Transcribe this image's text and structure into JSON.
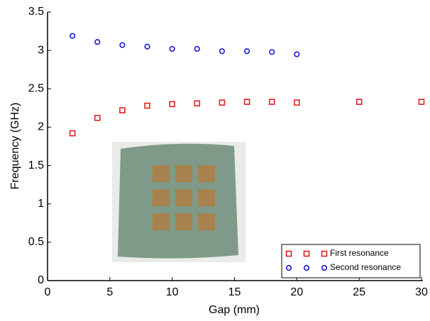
{
  "chart_data": {
    "type": "scatter",
    "x_label": "Gap (mm)",
    "y_label": "Frequency (GHz)",
    "xlim": [
      0,
      30
    ],
    "xticks": [
      0,
      5,
      10,
      15,
      20,
      25,
      30
    ],
    "ylim": [
      0,
      3.5
    ],
    "yticks": [
      0,
      0.5,
      1,
      1.5,
      2,
      2.5,
      3,
      3.5
    ],
    "legend": "lower right",
    "grid": false,
    "series": [
      {
        "name": "First resonance",
        "color": "#e02020",
        "marker": "square",
        "x": [
          2,
          4,
          6,
          8,
          10,
          12,
          14,
          16,
          18,
          20,
          25,
          30
        ],
        "values": [
          1.92,
          2.12,
          2.22,
          2.28,
          2.3,
          2.31,
          2.32,
          2.33,
          2.33,
          2.32,
          2.33,
          2.33
        ]
      },
      {
        "name": "Second resonance",
        "color": "#1a1ad0",
        "marker": "circle",
        "x": [
          2,
          4,
          6,
          8,
          10,
          12,
          14,
          16,
          18,
          20
        ],
        "values": [
          3.19,
          3.11,
          3.07,
          3.05,
          3.02,
          3.02,
          2.99,
          2.99,
          2.98,
          2.95
        ]
      }
    ]
  }
}
